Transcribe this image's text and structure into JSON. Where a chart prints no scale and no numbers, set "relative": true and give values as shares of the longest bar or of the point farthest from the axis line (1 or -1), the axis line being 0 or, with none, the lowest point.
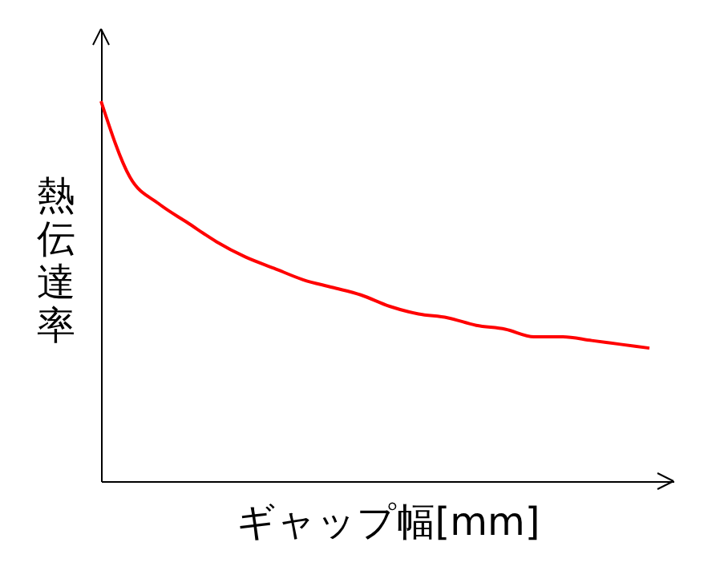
{
  "chart_data": {
    "type": "line",
    "relative": true,
    "xlabel": "ギャップ幅[mm]",
    "ylabel": "熱伝達率",
    "categories": [
      null,
      null,
      null,
      null,
      null,
      null,
      null,
      null,
      null,
      null,
      null,
      null,
      null,
      null,
      null,
      null,
      null,
      null,
      null,
      null
    ],
    "series": [
      {
        "color": "#ff0000",
        "values": [
          1.0,
          0.8,
          0.73,
          0.68,
          0.63,
          0.59,
          0.56,
          0.53,
          0.51,
          0.49,
          0.46,
          0.44,
          0.43,
          0.41,
          0.4,
          0.38,
          0.38,
          0.37,
          0.36,
          0.35
        ]
      }
    ],
    "tick_labels": false,
    "grid": false,
    "marker": "none",
    "line_style": "solid"
  }
}
